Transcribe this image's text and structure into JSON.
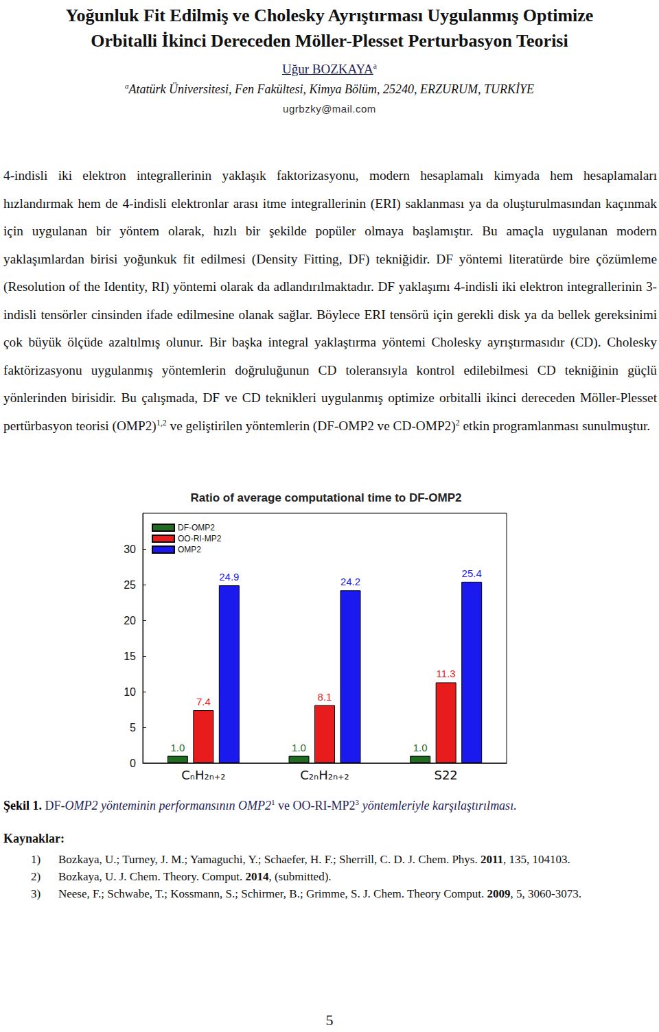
{
  "header": {
    "title": [
      "Yoğunluk Fit Edilmiş ve Cholesky Ayrıştırması Uygulanmış Optimize",
      "Orbitalli İkinci Dereceden Möller-Plesset Perturbasyon Teorisi"
    ],
    "author": [
      {
        "u": "Uğur BOZKAYA"
      },
      {
        "sup": "a"
      }
    ],
    "affiliation": [
      {
        "sup": "a"
      },
      {
        "i": "Atatürk Üniversitesi, Fen Fakültesi, Kimya Bölüm, 25240, ERZURUM, TURKİYE"
      }
    ],
    "email": "ugrbzky@mail.com"
  },
  "abstract": [
    "4-indisli iki elektron integrallerinin yaklaşık faktorizasyonu, modern hesaplamalı kimyada hem hesaplamaları hızlandırmak hem de 4-indisli elektronlar arası itme integrallerinin (ERI) saklanması ya da oluşturulmasından kaçınmak için uygulanan bir yöntem olarak, hızlı bir şekilde popüler olmaya başlamıştır. Bu amaçla uygulanan modern yaklaşımlardan birisi yoğunkuk fit edilmesi (Density Fitting, DF) tekniğidir. DF yöntemi literatürde bire çözümleme (Resolution of the Identity, RI) yöntemi olarak da adlandırılmaktadır. DF yaklaşımı 4-indisli iki elektron integrallerinin 3-indisli tensörler cinsinden ifade edilmesine olanak sağlar. Böylece ERI tensörü için gerekli disk ya da bellek gereksinimi çok büyük ölçüde azaltılmış olunur. Bir başka integral yaklaştırma yöntemi Cholesky ayrıştırmasıdır (CD). Cholesky faktörizasyonu uygulanmış yöntemlerin doğruluğunun CD toleransıyla kontrol edilebilmesi CD tekniğinin güçlü yönlerinden birisidir. Bu çalışmada, DF ve CD teknikleri uygulanmış optimize orbitalli ikinci dereceden Möller-Plesset pertürbasyon teorisi (OMP2)",
    {
      "sup": "1,2"
    },
    " ve geliştirilen yöntemlerin (DF-OMP2 ve CD-OMP2)",
    {
      "sup": "2"
    },
    " etkin programlanması sunulmuştur."
  ],
  "chart_data": {
    "type": "bar",
    "title": "Ratio of average computational time to DF-OMP2",
    "categories": [
      "CₙH₂ₙ₊₂",
      "C₂ₙH₂ₙ₊₂",
      "S22"
    ],
    "series": [
      {
        "name": "DF-OMP2",
        "color": "#1f6b1f",
        "values": [
          1.0,
          1.0,
          1.0
        ],
        "value_labels": [
          "1.0",
          "1.0",
          "1.0"
        ]
      },
      {
        "name": "OO-RI-MP2",
        "color": "#e81c1c",
        "values": [
          7.4,
          8.1,
          11.3
        ]
      },
      {
        "name": "OMP2",
        "color": "#1a1aee",
        "values": [
          24.9,
          24.2,
          25.4
        ]
      }
    ],
    "ylim": [
      0,
      35
    ],
    "yticks": [
      0,
      5,
      10,
      15,
      20,
      25,
      30
    ],
    "grid": false,
    "legend": "top-left",
    "data_labels": true
  },
  "caption": [
    {
      "b": "Şekil 1."
    },
    " DF-",
    {
      "i": "OMP2 yönteminin performansının OMP2"
    },
    {
      "sup": "1"
    },
    " ve OO-RI-MP2",
    {
      "sup": "3"
    },
    {
      "i": " yöntemleriyle karşılaştırılması."
    }
  ],
  "references": {
    "heading": "Kaynaklar:",
    "items": [
      {
        "number": "1)",
        "text": [
          "Bozkaya, U.; Turney, J. M.; Yamaguchi, Y.; Schaefer, H. F.; Sherrill, C. D. J. Chem. Phys. ",
          {
            "b": "2011"
          },
          ", 135, 104103."
        ]
      },
      {
        "number": "2)",
        "text": [
          "Bozkaya, U. J. Chem. Theory. Comput. ",
          {
            "b": "2014"
          },
          ", (submitted)."
        ]
      },
      {
        "number": "3)",
        "text": [
          "Neese, F.; Schwabe, T.; Kossmann, S.; Schirmer, B.; Grimme, S. J. Chem. Theory Comput. ",
          {
            "b": "2009"
          },
          ", 5, 3060-3073."
        ]
      }
    ]
  },
  "page_number": "5"
}
